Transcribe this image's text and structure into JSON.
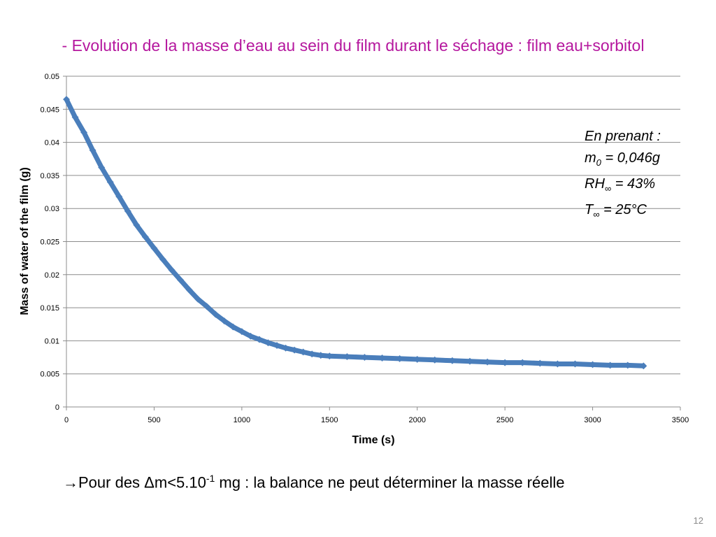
{
  "slide": {
    "title": "- Evolution de la masse d’eau au sein du film durant le séchage : film eau+sorbitol",
    "page_number": "12"
  },
  "annotation": {
    "line1": "En prenant :",
    "m0_label": "m",
    "m0_sub": "0",
    "m0_value": " = 0,046g",
    "rh_label": "RH",
    "rh_sub": "∞",
    "rh_value": " = 43%",
    "t_label": "T",
    "t_sub": "∞",
    "t_value": " = 25°C"
  },
  "conclusion": {
    "arrow": "→",
    "text_before": "Pour des Δm<5.10",
    "exponent": "-1",
    "text_after": " mg : la balance ne peut déterminer la masse réelle"
  },
  "chart_data": {
    "type": "scatter",
    "title": "",
    "xlabel": "Time (s)",
    "ylabel": "Mass of water of the film (g)",
    "xlim": [
      0,
      3500
    ],
    "ylim": [
      0,
      0.05
    ],
    "x_ticks": [
      "0",
      "500",
      "1000",
      "1500",
      "2000",
      "2500",
      "3000",
      "3500"
    ],
    "y_ticks": [
      "0",
      "0.005",
      "0.01",
      "0.015",
      "0.02",
      "0.025",
      "0.03",
      "0.035",
      "0.04",
      "0.045",
      "0.05"
    ],
    "grid": "horizontal",
    "legend": "none",
    "series_color": "#4a7ebb",
    "series": [
      {
        "x": [
          0,
          50,
          100,
          150,
          200,
          250,
          300,
          350,
          400,
          450,
          500,
          550,
          600,
          650,
          700,
          750,
          800,
          850,
          900,
          950,
          1000,
          1050,
          1100,
          1150,
          1200,
          1250,
          1300,
          1350,
          1400,
          1450,
          1500,
          1600,
          1700,
          1800,
          1900,
          2000,
          2100,
          2200,
          2300,
          2400,
          2500,
          2600,
          2700,
          2800,
          2900,
          3000,
          3100,
          3200,
          3290
        ],
        "y": [
          0.0465,
          0.0438,
          0.0415,
          0.0388,
          0.0362,
          0.034,
          0.0318,
          0.0296,
          0.0275,
          0.0257,
          0.024,
          0.0223,
          0.0207,
          0.0192,
          0.0177,
          0.0163,
          0.0152,
          0.014,
          0.013,
          0.0121,
          0.0114,
          0.0107,
          0.0102,
          0.0097,
          0.0093,
          0.0089,
          0.0086,
          0.0083,
          0.008,
          0.0078,
          0.0077,
          0.0076,
          0.0075,
          0.0074,
          0.0073,
          0.0072,
          0.0071,
          0.007,
          0.0069,
          0.0068,
          0.0067,
          0.0067,
          0.0066,
          0.0065,
          0.0065,
          0.0064,
          0.0063,
          0.0063,
          0.0062
        ]
      }
    ]
  }
}
